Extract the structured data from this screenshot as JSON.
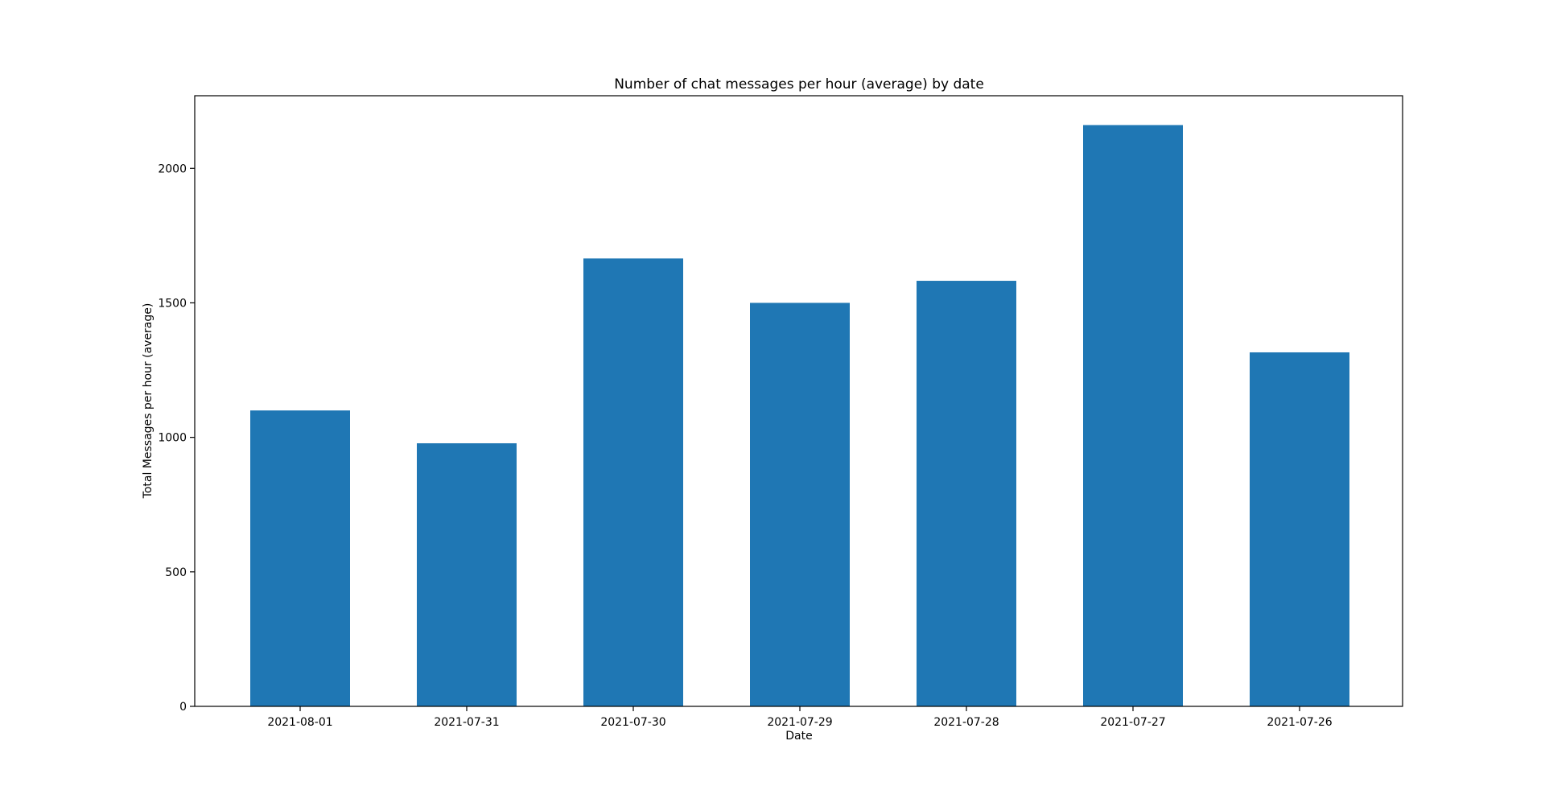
{
  "chart_data": {
    "type": "bar",
    "title": "Number of chat messages per hour (average) by date",
    "xlabel": "Date",
    "ylabel": "Total Messages per hour (average)",
    "categories": [
      "2021-08-01",
      "2021-07-31",
      "2021-07-30",
      "2021-07-29",
      "2021-07-28",
      "2021-07-27",
      "2021-07-26"
    ],
    "values": [
      1100,
      978,
      1665,
      1500,
      1582,
      2161,
      1316
    ],
    "ylim": [
      0,
      2270
    ],
    "yticks": [
      0,
      500,
      1000,
      1500,
      2000
    ],
    "grid": false,
    "bar_color": "#1f77b4"
  }
}
